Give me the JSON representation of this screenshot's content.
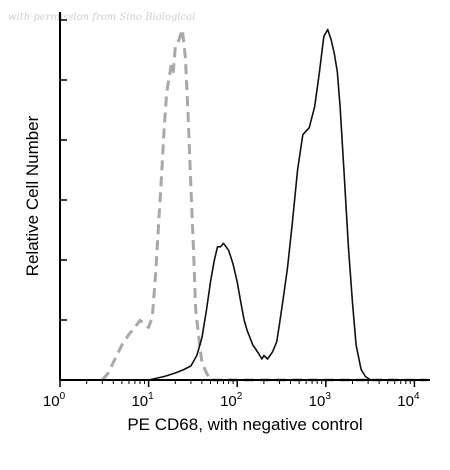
{
  "watermark": "with permission from Sino Biological",
  "chart_data": {
    "type": "line",
    "xlabel": "PE CD68, with negative control",
    "ylabel": "Relative Cell Number",
    "xscale": "log",
    "xlim": [
      1,
      15000
    ],
    "ylim": [
      0,
      1.05
    ],
    "x_ticks": [
      {
        "value": 1,
        "base": "10",
        "exp": "0"
      },
      {
        "value": 10,
        "base": "10",
        "exp": "1"
      },
      {
        "value": 100,
        "base": "10",
        "exp": "2"
      },
      {
        "value": 1000,
        "base": "10",
        "exp": "3"
      },
      {
        "value": 10000,
        "base": "10",
        "exp": "4"
      }
    ],
    "grid": false,
    "series": [
      {
        "id": "negative-control",
        "style": "dashed",
        "color": "#a8a8a8",
        "x": [
          3,
          3.5,
          4,
          5,
          6,
          7,
          8,
          9,
          10,
          11,
          12,
          13,
          14,
          15,
          16,
          17,
          18,
          19,
          20,
          22,
          24,
          26,
          28,
          30,
          32,
          34,
          37,
          40,
          45,
          50,
          60,
          80,
          100,
          1000,
          14000
        ],
        "y": [
          0.0,
          0.02,
          0.05,
          0.1,
          0.13,
          0.15,
          0.17,
          0.16,
          0.15,
          0.18,
          0.3,
          0.45,
          0.58,
          0.72,
          0.82,
          0.86,
          0.9,
          0.88,
          0.95,
          0.97,
          1.0,
          0.92,
          0.75,
          0.55,
          0.38,
          0.2,
          0.12,
          0.05,
          0.02,
          0.0,
          0.0,
          0.0,
          0.0,
          0.0,
          0.0
        ]
      },
      {
        "id": "pe-cd68",
        "style": "solid",
        "color": "#111111",
        "x": [
          4,
          10,
          15,
          20,
          25,
          30,
          35,
          40,
          45,
          50,
          55,
          60,
          65,
          70,
          75,
          80,
          85,
          90,
          100,
          110,
          120,
          130,
          140,
          150,
          160,
          170,
          180,
          190,
          200,
          220,
          250,
          280,
          300,
          330,
          370,
          420,
          480,
          550,
          650,
          750,
          850,
          950,
          1050,
          1150,
          1250,
          1350,
          1450,
          1600,
          1800,
          2000,
          2200,
          2500,
          2800,
          3200,
          3600
        ],
        "y": [
          0.0,
          0.0,
          0.01,
          0.02,
          0.03,
          0.04,
          0.07,
          0.12,
          0.2,
          0.28,
          0.34,
          0.38,
          0.38,
          0.39,
          0.38,
          0.37,
          0.35,
          0.33,
          0.28,
          0.22,
          0.17,
          0.14,
          0.12,
          0.1,
          0.09,
          0.08,
          0.07,
          0.06,
          0.07,
          0.06,
          0.08,
          0.11,
          0.16,
          0.23,
          0.32,
          0.45,
          0.6,
          0.7,
          0.72,
          0.78,
          0.88,
          0.98,
          1.0,
          0.97,
          0.93,
          0.88,
          0.78,
          0.6,
          0.38,
          0.22,
          0.1,
          0.03,
          0.01,
          0.0,
          0.0
        ]
      }
    ]
  }
}
